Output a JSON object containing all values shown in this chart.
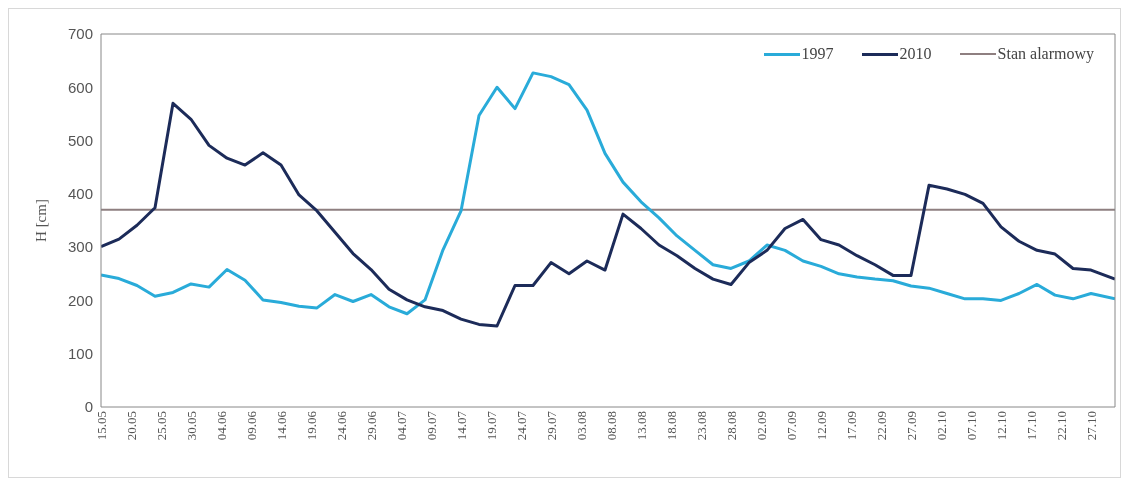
{
  "chart_data": {
    "type": "line",
    "ylabel": "H [cm]",
    "x": [
      "--05-15",
      "--05-18",
      "--05-21",
      "--05-24",
      "--05-27",
      "--05-30",
      "--06-02",
      "--06-05",
      "--06-08",
      "--06-11",
      "--06-14",
      "--06-17",
      "--06-20",
      "--06-23",
      "--06-26",
      "--06-29",
      "--07-02",
      "--07-05",
      "--07-08",
      "--07-11",
      "--07-14",
      "--07-17",
      "--07-20",
      "--07-23",
      "--07-26",
      "--07-29",
      "--08-01",
      "--08-04",
      "--08-07",
      "--08-10",
      "--08-13",
      "--08-16",
      "--08-19",
      "--08-22",
      "--08-25",
      "--08-28",
      "--08-31",
      "--09-03",
      "--09-06",
      "--09-09",
      "--09-12",
      "--09-15",
      "--09-18",
      "--09-21",
      "--09-24",
      "--09-27",
      "--09-30",
      "--10-03",
      "--10-06",
      "--10-09",
      "--10-12",
      "--10-15",
      "--10-18",
      "--10-21",
      "--10-24",
      "--10-27",
      "--10-31"
    ],
    "series": [
      {
        "name": "1997",
        "color": "#29abd9",
        "values": [
          248,
          241,
          228,
          208,
          215,
          231,
          225,
          258,
          238,
          201,
          196,
          189,
          186,
          211,
          198,
          211,
          188,
          175,
          201,
          295,
          368,
          547,
          600,
          560,
          627,
          620,
          605,
          557,
          476,
          422,
          385,
          355,
          321,
          294,
          267,
          260,
          274,
          304,
          294,
          274,
          264,
          250,
          244,
          240,
          237,
          227,
          223,
          213,
          203,
          203,
          200,
          213,
          230,
          210,
          203,
          213,
          203
        ]
      },
      {
        "name": "2010",
        "color": "#1c2b59",
        "values": [
          301,
          315,
          341,
          374,
          570,
          540,
          491,
          467,
          454,
          477,
          454,
          398,
          368,
          328,
          288,
          258,
          221,
          201,
          188,
          181,
          165,
          155,
          152,
          228,
          228,
          271,
          250,
          274,
          257,
          362,
          335,
          304,
          284,
          260,
          240,
          230,
          271,
          294,
          335,
          352,
          314,
          304,
          284,
          267,
          247,
          247,
          416,
          409,
          399,
          382,
          338,
          311,
          294,
          287,
          260,
          257,
          240
        ]
      }
    ],
    "ref_lines": [
      {
        "axis": "y",
        "value": 370,
        "label": "Stan alarmowy",
        "color": "#8e7f80"
      }
    ],
    "xlim": [
      "--05-15",
      "--10-31"
    ],
    "xticks": [
      {
        "value": "--05-15",
        "label": "15.05"
      },
      {
        "value": "--05-20",
        "label": "20.05"
      },
      {
        "value": "--05-25",
        "label": "25.05"
      },
      {
        "value": "--05-30",
        "label": "30.05"
      },
      {
        "value": "--06-04",
        "label": "04.06"
      },
      {
        "value": "--06-09",
        "label": "09.06"
      },
      {
        "value": "--06-14",
        "label": "14.06"
      },
      {
        "value": "--06-19",
        "label": "19.06"
      },
      {
        "value": "--06-24",
        "label": "24.06"
      },
      {
        "value": "--06-29",
        "label": "29.06"
      },
      {
        "value": "--07-04",
        "label": "04.07"
      },
      {
        "value": "--07-09",
        "label": "09.07"
      },
      {
        "value": "--07-14",
        "label": "14.07"
      },
      {
        "value": "--07-19",
        "label": "19.07"
      },
      {
        "value": "--07-24",
        "label": "24.07"
      },
      {
        "value": "--07-29",
        "label": "29.07"
      },
      {
        "value": "--08-03",
        "label": "03.08"
      },
      {
        "value": "--08-08",
        "label": "08.08"
      },
      {
        "value": "--08-13",
        "label": "13.08"
      },
      {
        "value": "--08-18",
        "label": "18.08"
      },
      {
        "value": "--08-23",
        "label": "23.08"
      },
      {
        "value": "--08-28",
        "label": "28.08"
      },
      {
        "value": "--09-02",
        "label": "02.09"
      },
      {
        "value": "--09-07",
        "label": "07.09"
      },
      {
        "value": "--09-12",
        "label": "12.09"
      },
      {
        "value": "--09-17",
        "label": "17.09"
      },
      {
        "value": "--09-22",
        "label": "22.09"
      },
      {
        "value": "--09-27",
        "label": "27.09"
      },
      {
        "value": "--10-02",
        "label": "02.10"
      },
      {
        "value": "--10-07",
        "label": "07.10"
      },
      {
        "value": "--10-12",
        "label": "12.10"
      },
      {
        "value": "--10-17",
        "label": "17.10"
      },
      {
        "value": "--10-22",
        "label": "22.10"
      },
      {
        "value": "--10-27",
        "label": "27.10"
      }
    ],
    "ylim": [
      0,
      700
    ],
    "yticks": [
      0,
      100,
      200,
      300,
      400,
      500,
      600,
      700
    ],
    "legend": "top right",
    "marker": "none",
    "line_style": "solid"
  }
}
